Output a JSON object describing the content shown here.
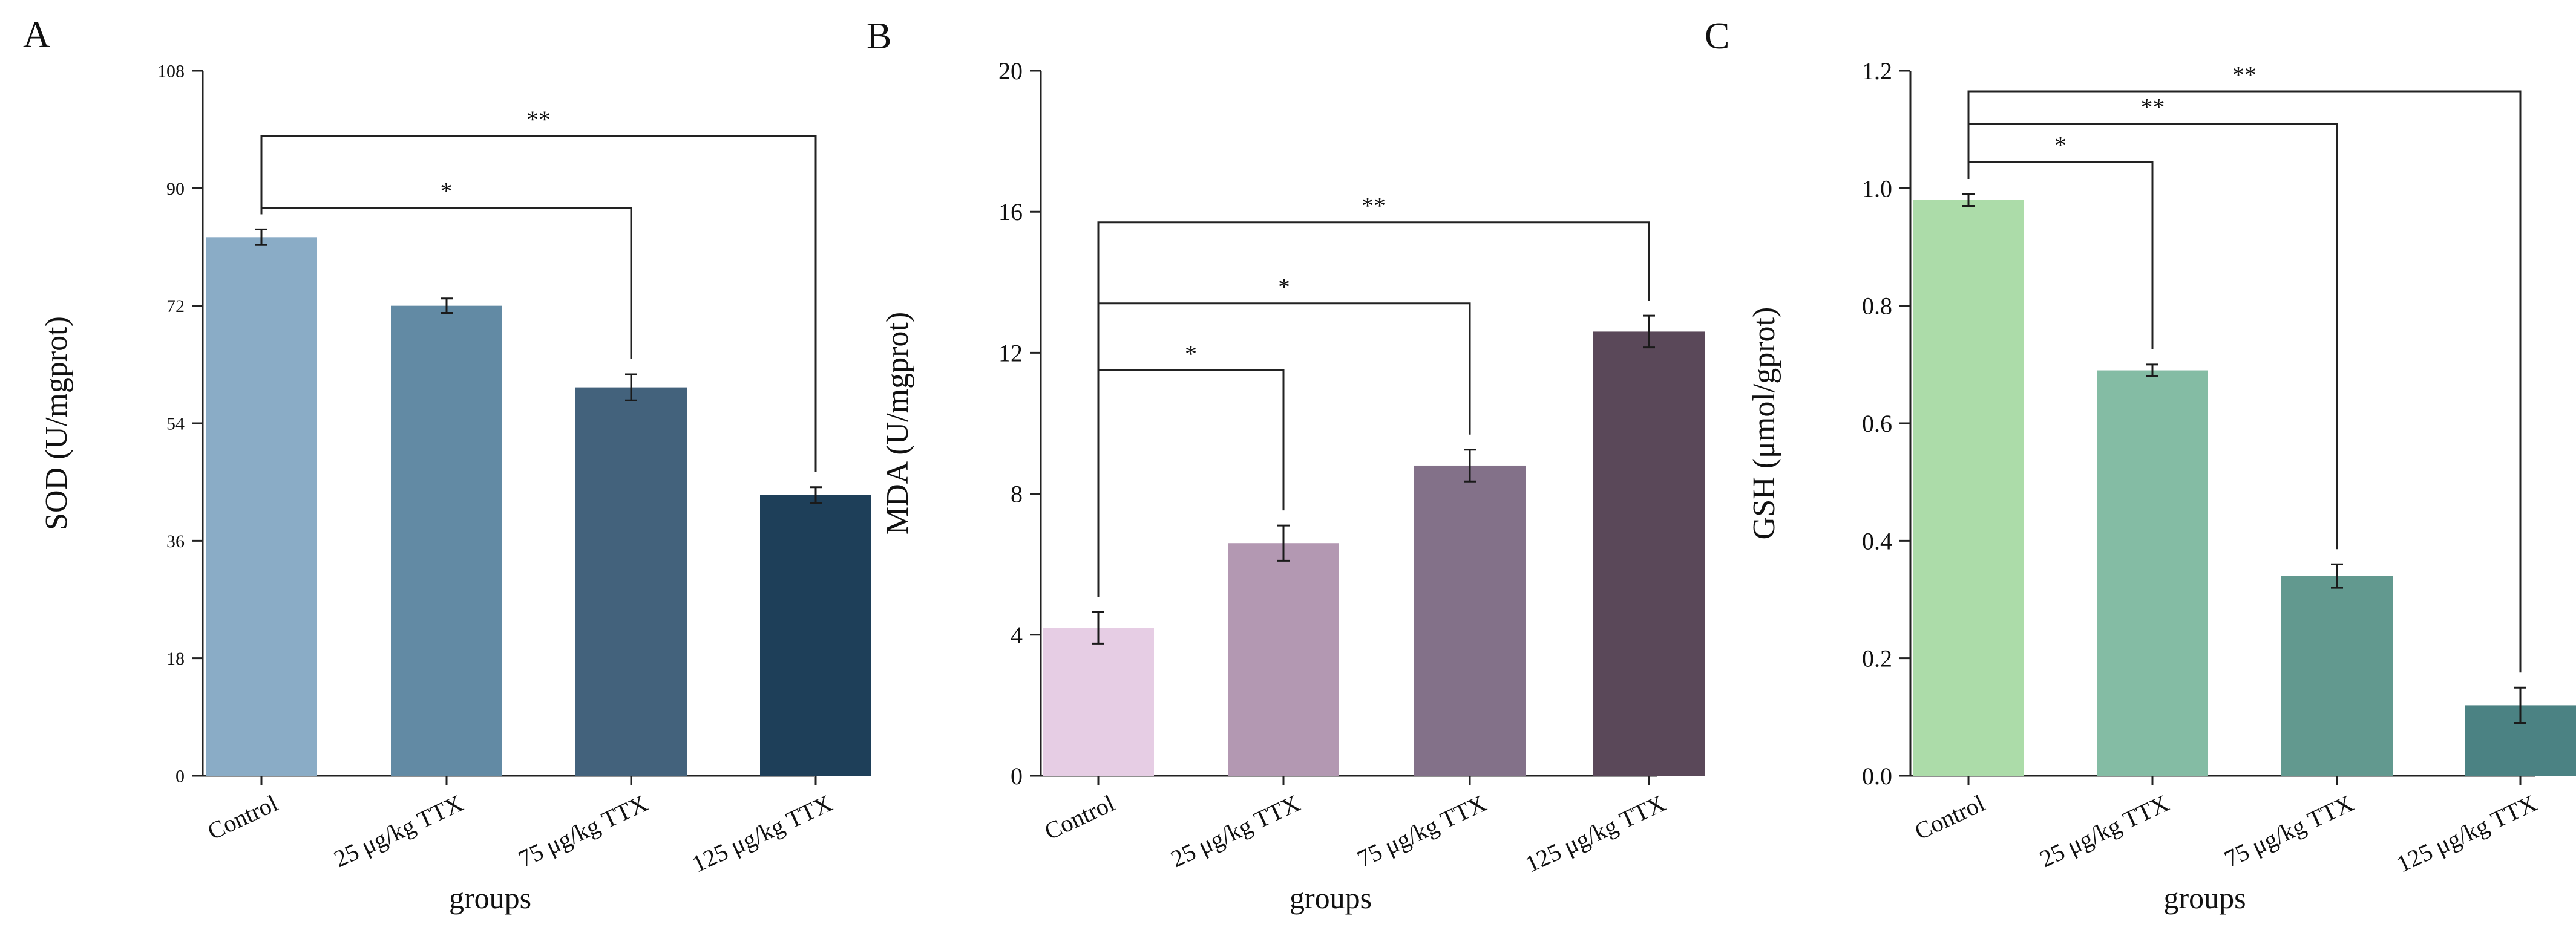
{
  "figure": {
    "xlabel": "groups",
    "categories": [
      "Control",
      "25 μg/kg TTX",
      "75 μg/kg TTX",
      "125 μg/kg TTX"
    ]
  },
  "chart_data": [
    {
      "type": "bar",
      "panel": "A",
      "ylabel": "SOD (U/mgprot)",
      "xlabel": "groups",
      "categories": [
        "Control",
        "25 μg/kg TTX",
        "75 μg/kg TTX",
        "125 μg/kg TTX"
      ],
      "values": [
        82.5,
        72,
        59.5,
        43
      ],
      "errors": [
        1.2,
        1.1,
        2.0,
        1.2
      ],
      "colors": [
        "#8aacc6",
        "#628aa4",
        "#43627c",
        "#1e3f59"
      ],
      "ylim": [
        0,
        108
      ],
      "yticks": [
        0,
        18,
        36,
        54,
        72,
        90,
        108
      ],
      "ytick_labels": [
        "0",
        "18",
        "36",
        "54",
        "72",
        "90",
        "108"
      ],
      "significance": [
        {
          "from": 0,
          "to": 2,
          "label": "*",
          "level": 87
        },
        {
          "from": 0,
          "to": 3,
          "label": "**",
          "level": 98
        }
      ]
    },
    {
      "type": "bar",
      "panel": "B",
      "ylabel": "MDA (U/mgprot)",
      "xlabel": "groups",
      "categories": [
        "Control",
        "25 μg/kg TTX",
        "75 μg/kg TTX",
        "125 μg/kg TTX"
      ],
      "values": [
        4.2,
        6.6,
        8.8,
        12.6
      ],
      "errors": [
        0.45,
        0.5,
        0.45,
        0.45
      ],
      "colors": [
        "#e6cde4",
        "#b398b2",
        "#837189",
        "#5a4859"
      ],
      "ylim": [
        0,
        20
      ],
      "yticks": [
        0,
        4,
        8,
        12,
        16,
        20
      ],
      "ytick_labels": [
        "0",
        "4",
        "8",
        "12",
        "16",
        "20"
      ],
      "significance": [
        {
          "from": 0,
          "to": 1,
          "label": "*",
          "level": 11.5
        },
        {
          "from": 0,
          "to": 2,
          "label": "*",
          "level": 13.4
        },
        {
          "from": 0,
          "to": 3,
          "label": "**",
          "level": 15.7
        }
      ]
    },
    {
      "type": "bar",
      "panel": "C",
      "ylabel": "GSH (μmol/gprot)",
      "xlabel": "groups",
      "categories": [
        "Control",
        "25 μg/kg TTX",
        "75 μg/kg TTX",
        "125 μg/kg TTX"
      ],
      "values": [
        0.98,
        0.69,
        0.34,
        0.12
      ],
      "errors": [
        0.01,
        0.01,
        0.02,
        0.03
      ],
      "colors": [
        "#acdca9",
        "#84bca4",
        "#62998f",
        "#4b8283"
      ],
      "ylim": [
        0,
        1.2
      ],
      "yticks": [
        0,
        0.2,
        0.4,
        0.6,
        0.8,
        1.0,
        1.2
      ],
      "ytick_labels": [
        "0.0",
        "0.2",
        "0.4",
        "0.6",
        "0.8",
        "1.0",
        "1.2"
      ],
      "significance": [
        {
          "from": 0,
          "to": 1,
          "label": "*",
          "level": 1.045
        },
        {
          "from": 0,
          "to": 2,
          "label": "**",
          "level": 1.11
        },
        {
          "from": 0,
          "to": 3,
          "label": "**",
          "level": 1.165
        }
      ]
    }
  ]
}
